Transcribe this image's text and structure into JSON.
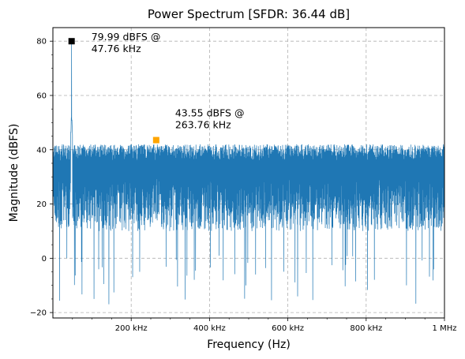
{
  "chart_data": {
    "type": "line",
    "title": "Power Spectrum [SFDR: 36.44 dB]",
    "xlabel": "Frequency (Hz)",
    "ylabel": "Magnitude (dBFS)",
    "xlim": [
      0,
      1000000
    ],
    "ylim": [
      -22,
      85
    ],
    "grid": true,
    "x_ticks": [
      {
        "value": 200000,
        "label": "200 kHz"
      },
      {
        "value": 400000,
        "label": "400 kHz"
      },
      {
        "value": 600000,
        "label": "600 kHz"
      },
      {
        "value": 800000,
        "label": "800 kHz"
      },
      {
        "value": 1000000,
        "label": "1 MHz"
      }
    ],
    "y_ticks": [
      {
        "value": -20,
        "label": "−20"
      },
      {
        "value": 0,
        "label": "0"
      },
      {
        "value": 20,
        "label": "20"
      },
      {
        "value": 40,
        "label": "40"
      },
      {
        "value": 60,
        "label": "60"
      },
      {
        "value": 80,
        "label": "80"
      }
    ],
    "series": [
      {
        "color": "#1f77b4",
        "description_of_shape": "noise floor spanning roughly 5 to 42 dBFS across 0–1 MHz with occasional dips to about -17 dBFS; single tone peak at 47.76 kHz reaching 79.99 dBFS",
        "noise_floor_max": 42,
        "noise_floor_min": 5,
        "deep_dip_min": -17
      }
    ],
    "markers": [
      {
        "x": 47760,
        "y": 79.99,
        "color": "#000000",
        "label_line1": "79.99 dBFS @",
        "label_line2": "47.76 kHz"
      },
      {
        "x": 263760,
        "y": 43.55,
        "color": "#ffa500",
        "label_line1": "43.55 dBFS @",
        "label_line2": "263.76 kHz"
      }
    ]
  }
}
